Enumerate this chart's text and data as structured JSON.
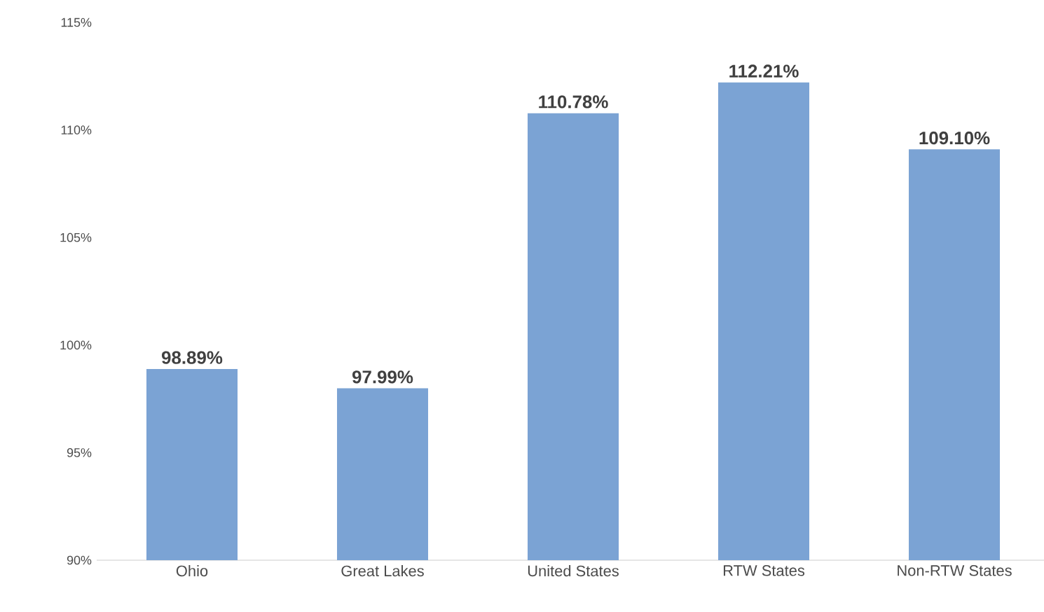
{
  "chart_data": {
    "type": "bar",
    "categories": [
      "Ohio",
      "Great Lakes",
      "United States",
      "RTW States",
      "Non-RTW States"
    ],
    "values": [
      98.89,
      97.99,
      110.78,
      112.21,
      109.1
    ],
    "value_labels": [
      "98.89%",
      "97.99%",
      "110.78%",
      "112.21%",
      "109.10%"
    ],
    "color": "#7ba3d4",
    "ylim": [
      90,
      115
    ],
    "yticks": [
      {
        "value": 90,
        "label": "90%"
      },
      {
        "value": 95,
        "label": "95%"
      },
      {
        "value": 100,
        "label": "100%"
      },
      {
        "value": 105,
        "label": "105%"
      },
      {
        "value": 110,
        "label": "110%"
      },
      {
        "value": 115,
        "label": "115%"
      }
    ],
    "grid": false
  }
}
